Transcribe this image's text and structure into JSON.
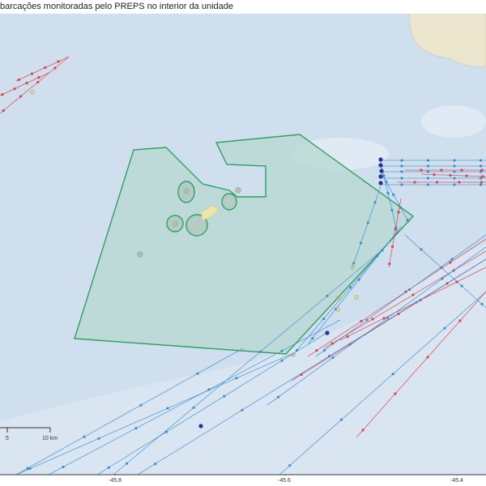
{
  "title": "barcações monitoradas pelo PREPS no interior da unidade",
  "axis": {
    "x_ticks": [
      "-45.8",
      "-45.6",
      "-45.4"
    ]
  },
  "scale_bar": {
    "labels": [
      "5",
      "10 km"
    ]
  },
  "colors": {
    "sea": "#cfdfee",
    "land": "#ece6cf",
    "protected_area_fill": "#b8d8d0",
    "protected_area_stroke": "#2ea060",
    "track_blue": "#3f8fd0",
    "track_red": "#e0404a",
    "vessel_position": "#2a2f9a",
    "marker_yellow": "#c8b040"
  }
}
